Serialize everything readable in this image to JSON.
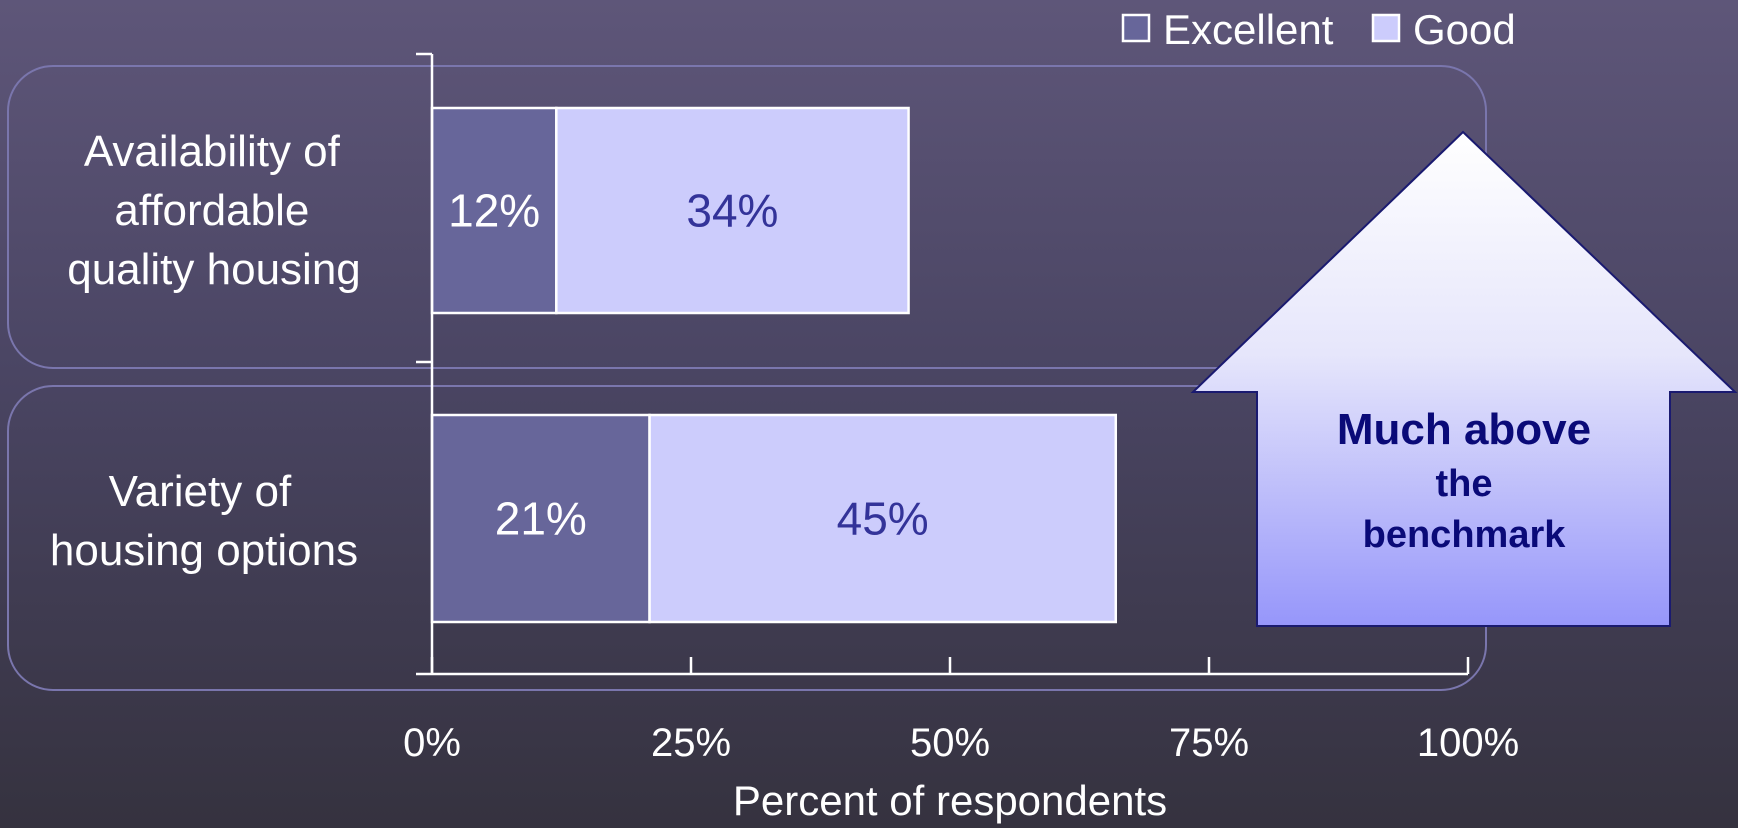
{
  "chart_data": {
    "type": "bar",
    "orientation": "horizontal",
    "stacked": true,
    "categories": [
      "Availability of affordable quality housing",
      "Variety of housing options"
    ],
    "category_lines": [
      [
        "Availability of",
        "affordable",
        "quality housing"
      ],
      [
        "Variety of",
        "housing options"
      ]
    ],
    "series": [
      {
        "name": "Excellent",
        "values": [
          12,
          21
        ],
        "labels": [
          "12%",
          "21%"
        ],
        "color": "#67669a",
        "label_color": "#ffffff"
      },
      {
        "name": "Good",
        "values": [
          34,
          45
        ],
        "labels": [
          "34%",
          "45%"
        ],
        "color": "#ccccfc",
        "label_color": "#333399"
      }
    ],
    "xlabel": "Percent of respondents",
    "xlim": [
      0,
      100
    ],
    "xticks": [
      0,
      25,
      50,
      75,
      100
    ],
    "xtick_labels": [
      "0%",
      "25%",
      "50%",
      "75%",
      "100%"
    ],
    "grid": false,
    "legend_position": "top-right"
  },
  "callout": {
    "line1": "Much above",
    "line2": "the",
    "line3": "benchmark"
  },
  "colors": {
    "frame": "#7a76ad",
    "axis": "#ffffff",
    "arrow_top": "#ffffff",
    "arrow_bottom": "#9696fa",
    "arrow_stroke": "#1a1a70"
  }
}
